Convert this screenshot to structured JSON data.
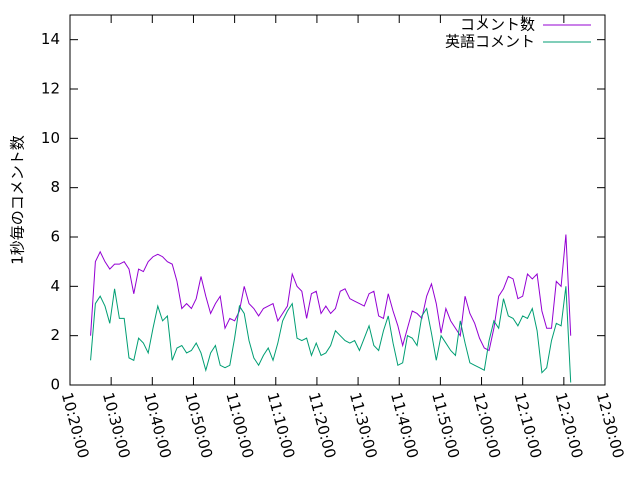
{
  "chart_data": {
    "type": "line",
    "y_label": "1秒毎のコメント数",
    "x": [
      "10:25:00",
      "10:26:10",
      "10:27:20",
      "10:28:30",
      "10:29:40",
      "10:30:50",
      "10:32:00",
      "10:33:10",
      "10:34:20",
      "10:35:30",
      "10:36:40",
      "10:37:50",
      "10:39:00",
      "10:40:10",
      "10:41:20",
      "10:42:30",
      "10:43:40",
      "10:44:50",
      "10:46:00",
      "10:47:10",
      "10:48:20",
      "10:49:30",
      "10:50:40",
      "10:51:50",
      "10:53:00",
      "10:54:10",
      "10:55:20",
      "10:56:30",
      "10:57:40",
      "10:58:50",
      "11:00:00",
      "11:01:10",
      "11:02:20",
      "11:03:30",
      "11:04:40",
      "11:05:50",
      "11:07:00",
      "11:08:10",
      "11:09:20",
      "11:10:30",
      "11:11:40",
      "11:12:50",
      "11:14:00",
      "11:15:10",
      "11:16:20",
      "11:17:30",
      "11:18:40",
      "11:19:50",
      "11:21:00",
      "11:22:10",
      "11:23:20",
      "11:24:30",
      "11:25:40",
      "11:26:50",
      "11:28:00",
      "11:29:10",
      "11:30:20",
      "11:31:30",
      "11:32:40",
      "11:33:50",
      "11:35:00",
      "11:36:10",
      "11:37:20",
      "11:38:30",
      "11:39:40",
      "11:40:50",
      "11:42:00",
      "11:43:10",
      "11:44:20",
      "11:45:30",
      "11:46:40",
      "11:47:50",
      "11:49:00",
      "11:50:10",
      "11:51:20",
      "11:52:30",
      "11:53:40",
      "11:54:50",
      "11:56:00",
      "11:57:10",
      "11:58:20",
      "11:59:30",
      "12:00:40",
      "12:01:50",
      "12:03:00",
      "12:04:10",
      "12:05:20",
      "12:06:30",
      "12:07:40",
      "12:08:50",
      "12:10:00",
      "12:11:10",
      "12:12:20",
      "12:13:30",
      "12:14:40",
      "12:15:50",
      "12:17:00",
      "12:18:10",
      "12:19:20",
      "12:20:30",
      "12:21:40"
    ],
    "series": [
      {
        "name": "コメント数",
        "color": "#9400d3",
        "values": [
          2.0,
          5.0,
          5.4,
          5.0,
          4.7,
          4.9,
          4.9,
          5.0,
          4.7,
          3.7,
          4.7,
          4.6,
          5.0,
          5.2,
          5.3,
          5.2,
          5.0,
          4.9,
          4.2,
          3.1,
          3.3,
          3.1,
          3.5,
          4.4,
          3.6,
          2.9,
          3.3,
          3.6,
          2.3,
          2.7,
          2.6,
          3.0,
          4.0,
          3.3,
          3.1,
          2.8,
          3.1,
          3.2,
          3.3,
          2.6,
          2.9,
          3.2,
          4.5,
          4.0,
          3.8,
          2.7,
          3.7,
          3.8,
          2.9,
          3.2,
          2.9,
          3.1,
          3.8,
          3.9,
          3.5,
          3.4,
          3.3,
          3.2,
          3.7,
          3.8,
          2.8,
          2.7,
          3.7,
          3.0,
          2.4,
          1.6,
          2.3,
          3.0,
          2.9,
          2.7,
          3.6,
          4.1,
          3.3,
          2.1,
          3.1,
          2.6,
          2.3,
          2.0,
          3.6,
          2.9,
          2.5,
          1.9,
          1.5,
          1.4,
          2.3,
          3.6,
          3.9,
          4.4,
          4.3,
          3.5,
          3.6,
          4.5,
          4.3,
          4.5,
          3.0,
          2.3,
          2.3,
          4.2,
          4.0,
          6.1,
          2.0
        ]
      },
      {
        "name": "英語コメント",
        "color": "#009e73",
        "values": [
          1.0,
          3.3,
          3.6,
          3.2,
          2.5,
          3.9,
          2.7,
          2.7,
          1.1,
          1.0,
          1.9,
          1.7,
          1.3,
          2.3,
          3.2,
          2.6,
          2.8,
          1.0,
          1.5,
          1.6,
          1.3,
          1.4,
          1.7,
          1.3,
          0.6,
          1.3,
          1.6,
          0.8,
          0.7,
          0.8,
          1.9,
          3.2,
          2.9,
          1.8,
          1.1,
          0.8,
          1.2,
          1.5,
          1.0,
          1.7,
          2.6,
          3.0,
          3.3,
          1.9,
          1.8,
          1.9,
          1.2,
          1.7,
          1.2,
          1.3,
          1.6,
          2.2,
          2.0,
          1.8,
          1.7,
          1.8,
          1.4,
          1.9,
          2.4,
          1.6,
          1.4,
          2.2,
          2.8,
          1.7,
          0.8,
          0.9,
          2.0,
          1.9,
          1.6,
          2.8,
          3.1,
          2.1,
          1.0,
          2.0,
          1.7,
          1.4,
          1.2,
          2.6,
          1.7,
          0.9,
          0.8,
          0.7,
          0.6,
          1.8,
          2.6,
          2.3,
          3.5,
          2.8,
          2.7,
          2.4,
          2.8,
          2.7,
          3.1,
          2.2,
          0.5,
          0.7,
          1.8,
          2.5,
          2.4,
          4.0,
          0.1
        ]
      }
    ],
    "xlim": [
      "10:20:00",
      "12:30:00"
    ],
    "xticks": [
      "10:20:00",
      "10:30:00",
      "10:40:00",
      "10:50:00",
      "11:00:00",
      "11:10:00",
      "11:20:00",
      "11:30:00",
      "11:40:00",
      "11:50:00",
      "12:00:00",
      "12:10:00",
      "12:20:00",
      "12:30:00"
    ],
    "ylim": [
      0,
      15
    ],
    "yticks": [
      0,
      2,
      4,
      6,
      8,
      10,
      12,
      14
    ],
    "legend": "top-right"
  }
}
